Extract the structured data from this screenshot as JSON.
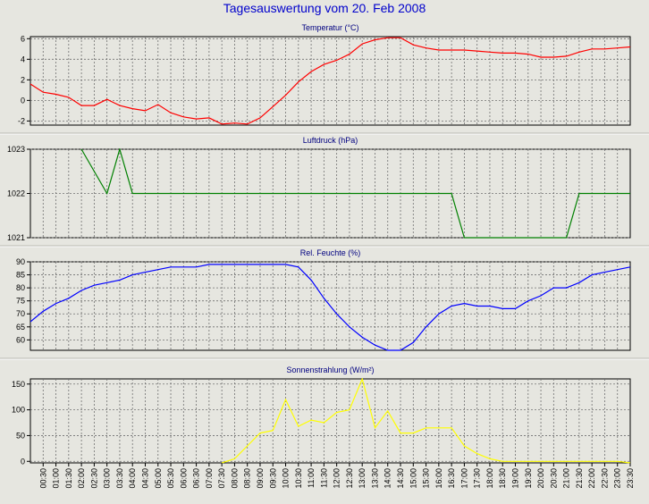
{
  "title": "Tagesauswertung vom 20. Feb 2008",
  "colors": {
    "temperature": "#ff0000",
    "pressure": "#008000",
    "humidity": "#0000ff",
    "solar": "#ffff00",
    "title": "#0000cc"
  },
  "chart_data": [
    {
      "type": "line",
      "title": "Temperatur (°C)",
      "ylim": [
        -2.4,
        6.2
      ],
      "yticks": [
        6,
        4,
        2,
        0,
        -2
      ],
      "grid": true,
      "x": [
        0,
        0.5,
        1,
        1.5,
        2,
        2.5,
        3,
        3.5,
        4,
        4.5,
        5,
        5.5,
        6,
        6.5,
        7,
        7.5,
        8,
        8.5,
        9,
        9.5,
        10,
        10.5,
        11,
        11.5,
        12,
        12.5,
        13,
        13.5,
        14,
        14.5,
        15,
        15.5,
        16,
        16.5,
        17,
        17.5,
        18,
        18.5,
        19,
        19.5,
        20,
        20.5,
        21,
        21.5,
        22,
        22.5,
        23,
        23.5
      ],
      "series": [
        {
          "values": [
            1.6,
            0.8,
            0.6,
            0.3,
            -0.5,
            -0.5,
            0.1,
            -0.5,
            -0.8,
            -1.0,
            -0.4,
            -1.2,
            -1.6,
            -1.8,
            -1.7,
            -2.3,
            -2.2,
            -2.3,
            -1.7,
            -0.6,
            0.5,
            1.8,
            2.8,
            3.5,
            3.9,
            4.5,
            5.5,
            5.9,
            6.1,
            6.1,
            5.4,
            5.1,
            4.9,
            4.9,
            4.9,
            4.8,
            4.7,
            4.6,
            4.6,
            4.5,
            4.2,
            4.2,
            4.3,
            4.7,
            5.0,
            5.0,
            5.1,
            5.2
          ]
        }
      ]
    },
    {
      "type": "line",
      "title": "Luftdruck (hPa)",
      "ylim": [
        1021,
        1023
      ],
      "yticks": [
        1023,
        1022,
        1021
      ],
      "grid": true,
      "x": [
        2,
        3,
        3.5,
        4,
        16,
        16.5,
        17,
        21,
        21.5,
        22,
        23.5
      ],
      "series": [
        {
          "values": [
            1023,
            1022,
            1023,
            1022,
            1022,
            1022,
            1021,
            1021,
            1022,
            1022,
            1022
          ]
        }
      ]
    },
    {
      "type": "line",
      "title": "Rel. Feuchte (%)",
      "ylim": [
        56,
        90
      ],
      "yticks": [
        90,
        85,
        80,
        75,
        70,
        65,
        60
      ],
      "grid": true,
      "x": [
        0,
        0.5,
        1,
        1.5,
        2,
        2.5,
        3,
        3.5,
        4,
        4.5,
        5,
        5.5,
        6,
        6.5,
        7,
        7.5,
        8,
        8.5,
        9,
        9.5,
        10,
        10.5,
        11,
        11.5,
        12,
        12.5,
        13,
        13.5,
        14,
        14.5,
        15,
        15.5,
        16,
        16.5,
        17,
        17.5,
        18,
        18.5,
        19,
        19.5,
        20,
        20.5,
        21,
        21.5,
        22,
        22.5,
        23,
        23.5
      ],
      "series": [
        {
          "values": [
            67,
            71,
            74,
            76,
            79,
            81,
            82,
            83,
            85,
            86,
            87,
            88,
            88,
            88,
            89,
            89,
            89,
            89,
            89,
            89,
            89,
            88,
            83,
            76,
            70,
            65,
            61,
            58,
            56,
            56,
            59,
            65,
            70,
            73,
            74,
            73,
            73,
            72,
            72,
            75,
            77,
            80,
            80,
            82,
            85,
            86,
            87,
            88
          ]
        }
      ]
    },
    {
      "type": "line",
      "title": "Sonnenstrahlung (W/m²)",
      "ylim": [
        -3,
        160
      ],
      "yticks": [
        150,
        100,
        50,
        0
      ],
      "grid": true,
      "x": [
        7.5,
        8,
        8.5,
        9,
        9.5,
        10,
        10.5,
        11,
        11.5,
        12,
        12.5,
        13,
        13.5,
        14,
        14.5,
        15,
        15.5,
        16,
        16.5,
        17,
        17.5,
        18,
        18.5,
        19,
        19.5,
        20,
        20.5,
        21,
        21.5,
        22,
        22.5,
        23,
        23.5
      ],
      "series": [
        {
          "values": [
            -3,
            5,
            30,
            55,
            60,
            120,
            68,
            80,
            75,
            95,
            100,
            160,
            65,
            98,
            55,
            55,
            65,
            65,
            65,
            30,
            15,
            5,
            0,
            0,
            0,
            0,
            0,
            0,
            0,
            0,
            0,
            0,
            -3
          ]
        }
      ]
    }
  ],
  "x_labels": [
    "00:30",
    "01:00",
    "01:30",
    "02:00",
    "02:30",
    "03:00",
    "03:30",
    "04:00",
    "04:30",
    "05:00",
    "05:30",
    "06:00",
    "06:30",
    "07:00",
    "07:30",
    "08:00",
    "08:30",
    "09:00",
    "09:30",
    "10:00",
    "10:30",
    "11:00",
    "11:30",
    "12:00",
    "12:30",
    "13:00",
    "13:30",
    "14:00",
    "14:30",
    "15:00",
    "15:30",
    "16:00",
    "16:30",
    "17:00",
    "17:30",
    "18:00",
    "18:30",
    "19:00",
    "19:30",
    "20:00",
    "20:30",
    "21:00",
    "21:30",
    "22:00",
    "22:30",
    "23:00",
    "23:30"
  ]
}
